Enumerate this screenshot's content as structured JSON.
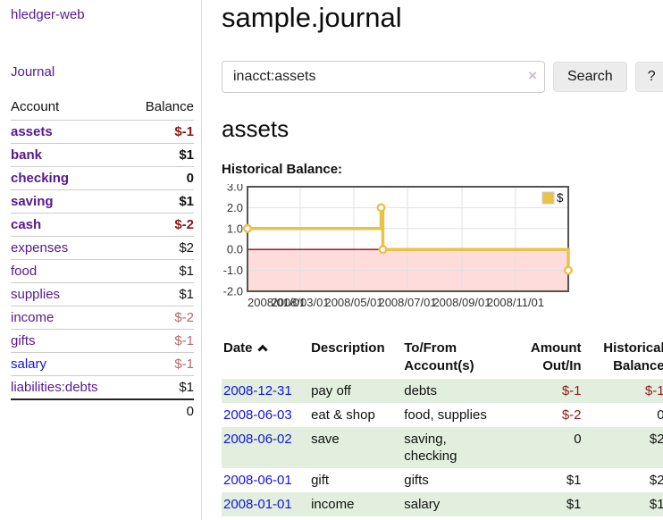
{
  "app": {
    "brand": "hledger-web"
  },
  "sidebar": {
    "nav_journal": "Journal",
    "accounts": {
      "headers": {
        "account": "Account",
        "balance": "Balance"
      },
      "rows": [
        {
          "name": "assets",
          "balance": "$-1",
          "indent": 1,
          "bold": true,
          "link": "purple",
          "balClass": "neg-strong"
        },
        {
          "name": "bank",
          "balance": "$1",
          "indent": 2,
          "bold": true,
          "link": "purple",
          "balClass": ""
        },
        {
          "name": "checking",
          "balance": "0",
          "indent": 3,
          "bold": true,
          "link": "purple",
          "balClass": ""
        },
        {
          "name": "saving",
          "balance": "$1",
          "indent": 3,
          "bold": true,
          "link": "purple",
          "balClass": ""
        },
        {
          "name": "cash",
          "balance": "$-2",
          "indent": 2,
          "bold": true,
          "link": "purple",
          "balClass": "neg-strong"
        },
        {
          "name": "expenses",
          "balance": "$2",
          "indent": 1,
          "bold": false,
          "link": "purple",
          "balClass": ""
        },
        {
          "name": "food",
          "balance": "$1",
          "indent": 2,
          "bold": false,
          "link": "purple",
          "balClass": ""
        },
        {
          "name": "supplies",
          "balance": "$1",
          "indent": 2,
          "bold": false,
          "link": "purple",
          "balClass": ""
        },
        {
          "name": "income",
          "balance": "$-2",
          "indent": 1,
          "bold": false,
          "link": "purple",
          "balClass": "neg-muted"
        },
        {
          "name": "gifts",
          "balance": "$-1",
          "indent": 2,
          "bold": false,
          "link": "purple",
          "balClass": "neg-muted"
        },
        {
          "name": "salary",
          "balance": "$-1",
          "indent": 2,
          "bold": false,
          "link": "blue",
          "balClass": "neg-muted"
        },
        {
          "name": "liabilities:debts",
          "balance": "$1",
          "indent": 1,
          "bold": false,
          "link": "purple",
          "balClass": ""
        }
      ],
      "total": "0"
    }
  },
  "main": {
    "title": "sample.journal",
    "search": {
      "value": "inacct:assets",
      "clear": "×",
      "button": "Search",
      "help": "?"
    },
    "account_heading": "assets",
    "chart_label": "Historical Balance:"
  },
  "chart_data": {
    "type": "line",
    "title": "Historical Balance",
    "series": [
      {
        "name": "$",
        "color": "#e9c248",
        "step": true,
        "points": [
          [
            "2008-01-01",
            1
          ],
          [
            "2008-06-01",
            2
          ],
          [
            "2008-06-03",
            0
          ],
          [
            "2008-12-31",
            -1
          ]
        ]
      }
    ],
    "x_start": "2008-01-01",
    "x_end": "2008-12-31",
    "x_ticks": [
      "2008/01/01",
      "2008/03/01",
      "2008/05/01",
      "2008/07/01",
      "2008/09/01",
      "2008/11/01"
    ],
    "y_ticks": [
      "3.0",
      "2.0",
      "1.0",
      "0.0",
      "-1.0",
      "-2.0"
    ],
    "ylim": [
      -2,
      3
    ],
    "grid": true,
    "legend": {
      "label": "$",
      "position": "top-right"
    },
    "colors": {
      "line": "#e9c248",
      "marker_fill": "#ffffff",
      "negative_region": "#fedcdc",
      "zero_line": "#8f0d0d",
      "grid": "#e0e0e0",
      "border": "#545454",
      "tick_text": "#333333"
    }
  },
  "register_table": {
    "headers": {
      "date": "Date",
      "description": "Description",
      "accounts": "To/From Account(s)",
      "amount": "Amount Out/In",
      "balance": "Historical Balance"
    },
    "rows": [
      {
        "date": "2008-12-31",
        "description": "pay off",
        "accounts": "debts",
        "amount": "$-1",
        "amountNeg": true,
        "balance": "$-1",
        "balanceNeg": true
      },
      {
        "date": "2008-06-03",
        "description": "eat & shop",
        "accounts": "food, supplies",
        "amount": "$-2",
        "amountNeg": true,
        "balance": "0",
        "balanceNeg": false
      },
      {
        "date": "2008-06-02",
        "description": "save",
        "accounts": "saving,\nchecking",
        "amount": "0",
        "amountNeg": false,
        "balance": "$2",
        "balanceNeg": false
      },
      {
        "date": "2008-06-01",
        "description": "gift",
        "accounts": "gifts",
        "amount": "$1",
        "amountNeg": false,
        "balance": "$2",
        "balanceNeg": false
      },
      {
        "date": "2008-01-01",
        "description": "income",
        "accounts": "salary",
        "amount": "$1",
        "amountNeg": false,
        "balance": "$1",
        "balanceNeg": false
      }
    ]
  }
}
